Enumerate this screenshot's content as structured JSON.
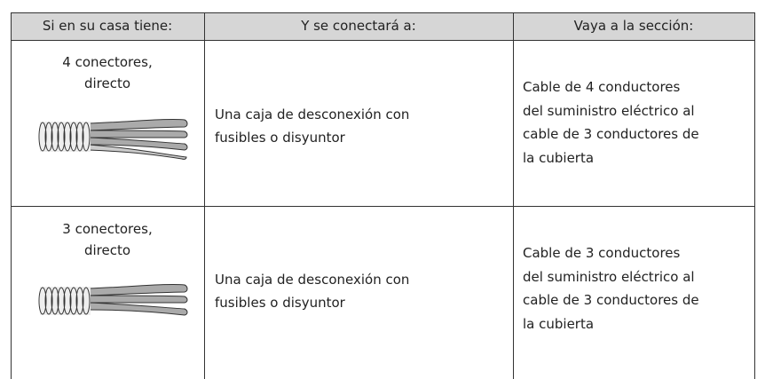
{
  "table": {
    "header": [
      "Si en su casa tiene:",
      "Y se conectará a:",
      "Vaya a la sección:"
    ],
    "rows": [
      [
        [
          "4 conectores,",
          "directo"
        ],
        [
          "Una caja de desconexión con",
          "fusibles o disyuntor"
        ],
        [
          "Cable de 4 conductores",
          "del suministro eléctrico al",
          "cable de 3 conductores de",
          "la cubierta"
        ]
      ],
      [
        [
          "3 conectores,",
          "directo"
        ],
        [
          "Una caja de desconexión con",
          "fusibles o disyuntor"
        ],
        [
          "Cable de 3 conductores",
          "del suministro eléctrico al",
          "cable de 3 conductores de",
          "la cubierta"
        ]
      ]
    ]
  }
}
